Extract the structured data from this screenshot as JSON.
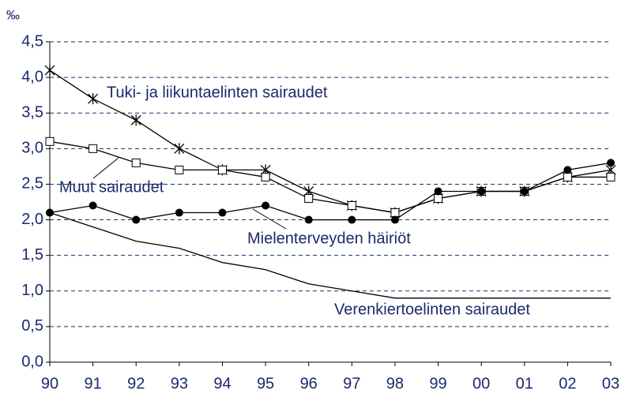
{
  "chart_data": {
    "type": "line",
    "y_label": "‰",
    "categories": [
      "90",
      "91",
      "92",
      "93",
      "94",
      "95",
      "96",
      "97",
      "98",
      "99",
      "00",
      "01",
      "02",
      "03"
    ],
    "ylim": [
      0,
      4.5
    ],
    "yticks": [
      {
        "value": 0,
        "label": "0,0"
      },
      {
        "value": 0.5,
        "label": "0,5"
      },
      {
        "value": 1,
        "label": "1,0"
      },
      {
        "value": 1.5,
        "label": "1,5"
      },
      {
        "value": 2,
        "label": "2,0"
      },
      {
        "value": 2.5,
        "label": "2,5"
      },
      {
        "value": 3,
        "label": "3,0"
      },
      {
        "value": 3.5,
        "label": "3,5"
      },
      {
        "value": 4,
        "label": "4,0"
      },
      {
        "value": 4.5,
        "label": "4,5"
      }
    ],
    "grid": true,
    "series": [
      {
        "name": "Tuki- ja liikuntaelinten sairaudet",
        "color": "#000000",
        "marker": "asterisk",
        "values": [
          4.1,
          3.7,
          3.4,
          3.0,
          2.7,
          2.7,
          2.4,
          2.2,
          2.1,
          2.3,
          2.4,
          2.4,
          2.6,
          2.7
        ]
      },
      {
        "name": "Muut sairaudet",
        "color": "#000000",
        "marker": "square",
        "values": [
          3.1,
          3.0,
          2.8,
          2.7,
          2.7,
          2.6,
          2.3,
          2.2,
          2.1,
          2.3,
          2.4,
          2.4,
          2.6,
          2.6
        ]
      },
      {
        "name": "Mielenterveyden häiriöt",
        "color": "#000000",
        "marker": "circle",
        "values": [
          2.1,
          2.2,
          2.0,
          2.1,
          2.1,
          2.2,
          2.0,
          2.0,
          2.0,
          2.4,
          2.4,
          2.4,
          2.7,
          2.8
        ]
      },
      {
        "name": "Verenkiertoelinten sairaudet",
        "color": "#000000",
        "marker": "none",
        "values": [
          2.1,
          1.9,
          1.7,
          1.6,
          1.4,
          1.3,
          1.1,
          1.0,
          0.9,
          0.9,
          0.9,
          0.9,
          0.9,
          0.9
        ]
      }
    ]
  }
}
